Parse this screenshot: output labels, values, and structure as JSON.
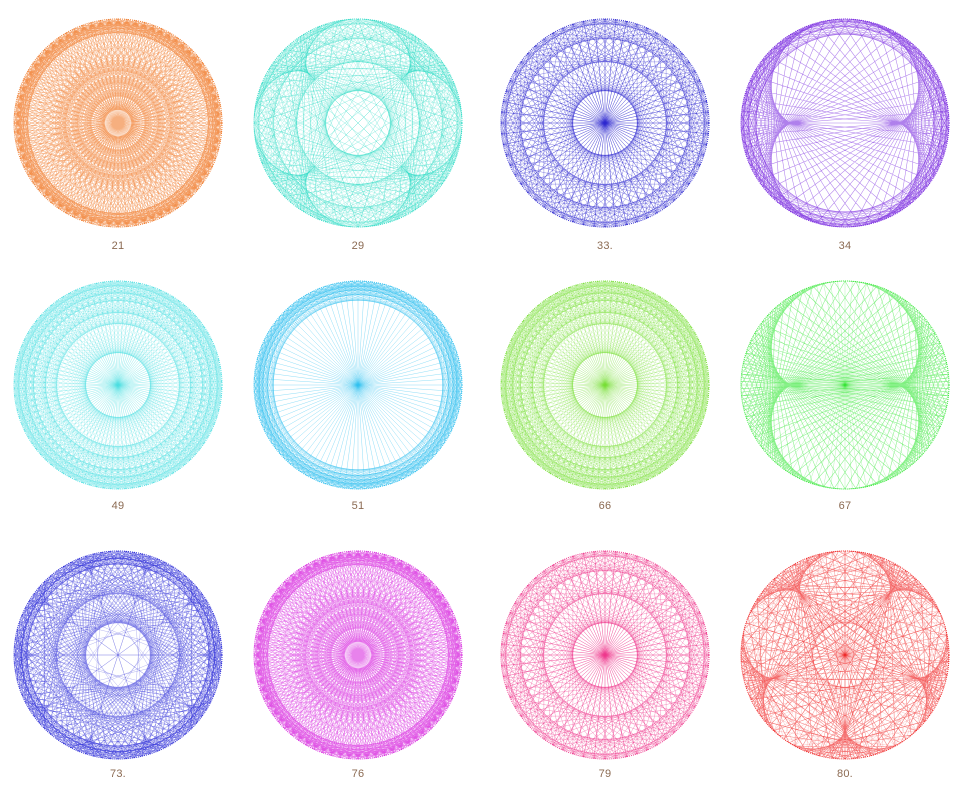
{
  "figures": [
    {
      "label": "21",
      "color": "#f07a2a",
      "pattern": "rings-hub"
    },
    {
      "label": "29",
      "color": "#35dcc8",
      "pattern": "four-lobe"
    },
    {
      "label": "33.",
      "color": "#2f2ad0",
      "pattern": "lattice"
    },
    {
      "label": "34",
      "color": "#7a2be0",
      "pattern": "figure-eight"
    },
    {
      "label": "49",
      "color": "#52e0e4",
      "pattern": "dense-lattice"
    },
    {
      "label": "51",
      "color": "#35c2f0",
      "pattern": "outer-ring-hub"
    },
    {
      "label": "66",
      "color": "#7be03a",
      "pattern": "dense-lattice"
    },
    {
      "label": "67",
      "color": "#38e83a",
      "pattern": "two-lobe"
    },
    {
      "label": "73.",
      "color": "#3030d8",
      "pattern": "star-rosette"
    },
    {
      "label": "76",
      "color": "#d92fe0",
      "pattern": "rings-hub"
    },
    {
      "label": "79",
      "color": "#ef3a8e",
      "pattern": "lattice"
    },
    {
      "label": "80.",
      "color": "#f02a2a",
      "pattern": "five-corner"
    }
  ]
}
